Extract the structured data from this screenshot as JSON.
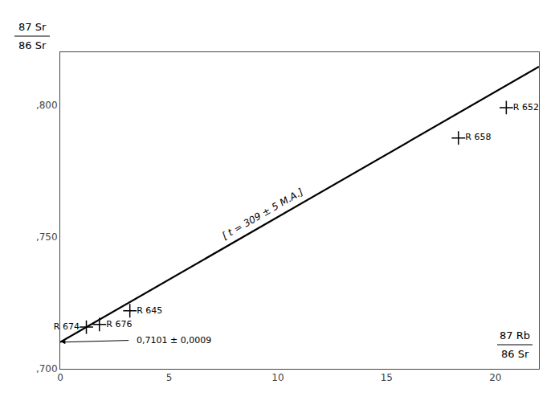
{
  "chart_data": {
    "type": "scatter",
    "xlabel": {
      "numerator": "87 Rb",
      "denominator": "86 Sr"
    },
    "ylabel": {
      "numerator": "87 Sr",
      "denominator": "86 Sr"
    },
    "xlim": [
      0,
      22
    ],
    "ylim": [
      0.7,
      0.82
    ],
    "xticks": [
      0,
      5,
      10,
      15,
      20
    ],
    "yticks": [
      {
        "value": 0.7,
        "label": ",700"
      },
      {
        "value": 0.75,
        "label": ",750"
      },
      {
        "value": 0.8,
        "label": ",800"
      }
    ],
    "grid": false,
    "series": [
      {
        "type": "line",
        "color": "#000000",
        "x": [
          0,
          22
        ],
        "y": [
          0.7101,
          0.8145
        ]
      },
      {
        "type": "scatter",
        "marker": "plus",
        "color": "#000000",
        "x": [
          1.2,
          1.8,
          3.2,
          18.3,
          20.5
        ],
        "y": [
          0.7158,
          0.7168,
          0.722,
          0.7875,
          0.799
        ],
        "labels": [
          "R 674",
          "R 676",
          "R 645",
          "R 658",
          "R 652"
        ]
      }
    ],
    "annotations": [
      {
        "text": "[ t = 309 ± 5 M.A.]",
        "x": 9.5,
        "y": 0.756
      },
      {
        "text": "0,7101 ± 0,0009",
        "x": 3.2,
        "y": 0.7108,
        "arrow_x": 0.05,
        "arrow_y": 0.7101
      }
    ]
  }
}
